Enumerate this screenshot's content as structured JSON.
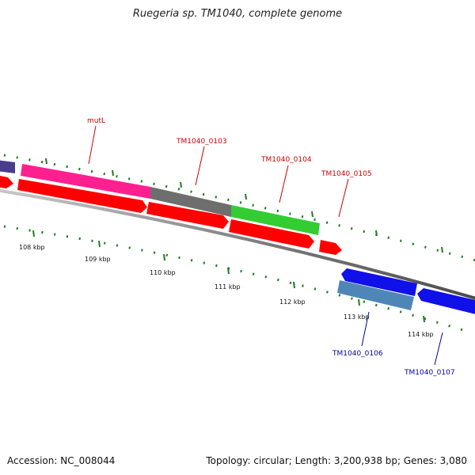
{
  "title": "Ruegeria sp. TM1040, complete genome",
  "footer": {
    "accession": "Accession: NC_008044",
    "summary": "Topology: circular; Length: 3,200,938 bp; Genes: 3,080"
  },
  "ticks": [
    "108 kbp",
    "109 kbp",
    "110 kbp",
    "111 kbp",
    "112 kbp",
    "113 kbp",
    "114 kbp"
  ],
  "gene_labels": [
    "mutL",
    "TM1040_0103",
    "TM1040_0104",
    "TM1040_0105",
    "TM1040_0106",
    "TM1040_0107"
  ],
  "colors": {
    "forward_label": "#cc0000",
    "reverse_label": "#0000aa",
    "cds": "#ff0000",
    "mutL": "#ff2090",
    "gray_gene": "#6e6e6e",
    "green_gene": "#33cc33",
    "blue_gene": "#1010e8",
    "steelblue_gene": "#4f86b8",
    "purple_gene": "#4a3c8c",
    "backbone": "#7a7a7a",
    "tick": "#1f7a1f"
  }
}
